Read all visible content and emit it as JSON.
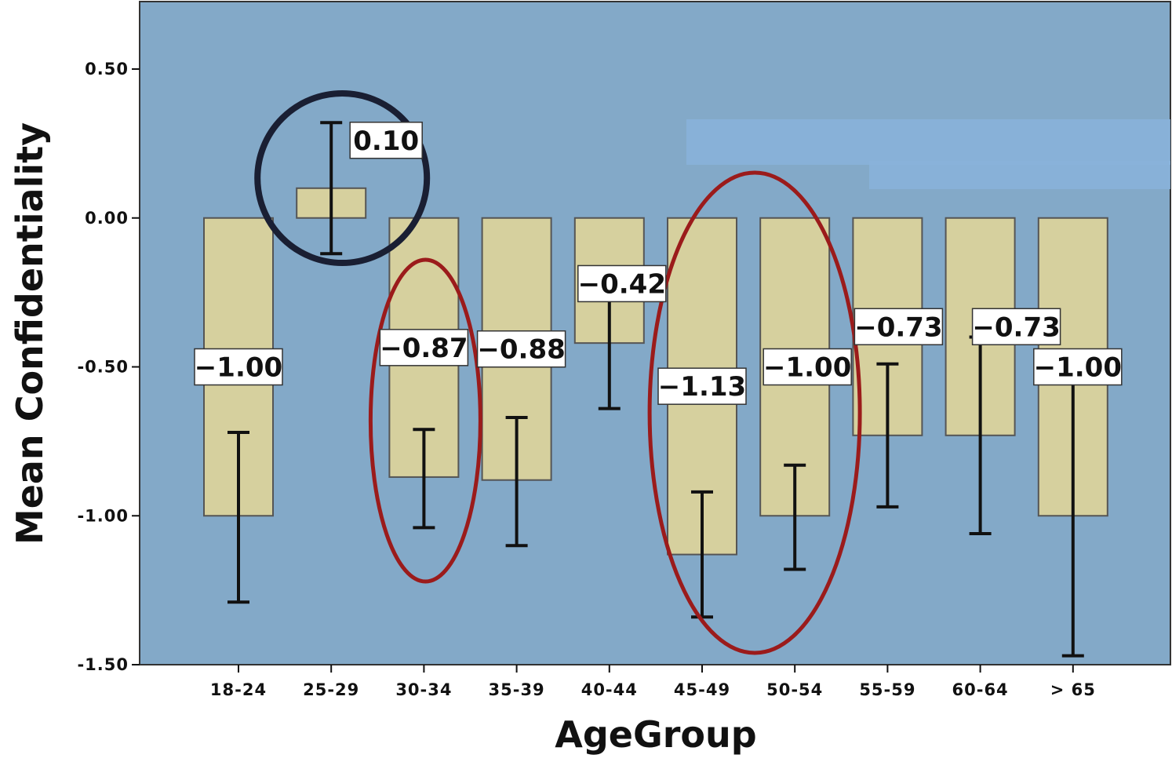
{
  "chart_data": {
    "type": "bar",
    "title": "",
    "xlabel": "AgeGroup",
    "ylabel": "Mean Confidentiality",
    "ylim": [
      -1.5,
      0.5
    ],
    "y_ticks": [
      "0.50",
      "0.00",
      "-0.50",
      "-1.00",
      "-1.50"
    ],
    "y_tick_values": [
      0.5,
      0.0,
      -0.5,
      -1.0,
      -1.5
    ],
    "categories": [
      "18-24",
      "25-29",
      "30-34",
      "35-39",
      "40-44",
      "45-49",
      "50-54",
      "55-59",
      "60-64",
      "> 65"
    ],
    "values": [
      -1.0,
      0.1,
      -0.87,
      -0.88,
      -0.42,
      -1.13,
      -1.0,
      -0.73,
      -0.73,
      -1.0
    ],
    "value_labels": [
      "-1.00",
      "0.10",
      "-0.87",
      "-0.88",
      "-0.42",
      "-1.13",
      "-1.00",
      "-0.73",
      "-0.73",
      "-1.00"
    ],
    "error_bars": [
      {
        "low": -1.29,
        "high": -0.72
      },
      {
        "low": -0.12,
        "high": 0.32
      },
      {
        "low": -1.04,
        "high": -0.71
      },
      {
        "low": -1.1,
        "high": -0.67
      },
      {
        "low": -0.64,
        "high": -0.21
      },
      {
        "low": -1.34,
        "high": -0.92
      },
      {
        "low": -1.18,
        "high": -0.83
      },
      {
        "low": -0.97,
        "high": -0.49
      },
      {
        "low": -1.06,
        "high": -0.4
      },
      {
        "low": -1.47,
        "high": -0.54
      }
    ],
    "highlights": [
      {
        "shape": "circle",
        "color": "#1a1f33",
        "categories": [
          "25-29"
        ]
      },
      {
        "shape": "ellipse",
        "color": "#9b1b1b",
        "categories": [
          "30-34"
        ]
      },
      {
        "shape": "ellipse",
        "color": "#9b1b1b",
        "categories": [
          "45-49",
          "50-54"
        ]
      }
    ],
    "colors": {
      "background": "#83a9c8",
      "bar_fill": "#d6d09e",
      "bar_stroke": "#555555",
      "error_bar": "#111111"
    },
    "grid": false,
    "legend": "none"
  }
}
